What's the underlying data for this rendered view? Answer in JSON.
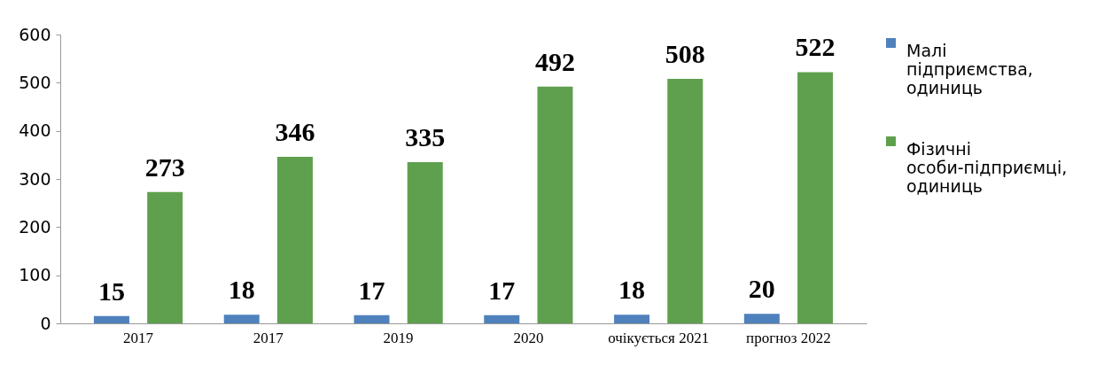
{
  "chart_data": {
    "type": "bar",
    "categories": [
      "2017",
      "2017",
      "2019",
      "2020",
      "очікується 2021",
      "прогноз 2022"
    ],
    "series": [
      {
        "name": "Малі підприємства, одиниць",
        "color": "#4f81bd",
        "values": [
          15,
          18,
          17,
          17,
          18,
          20
        ]
      },
      {
        "name": "Фізичні особи-підприємці, одиниць",
        "color": "#5fa04e",
        "values": [
          273,
          346,
          335,
          492,
          508,
          522
        ]
      }
    ],
    "ylim": [
      0,
      600
    ],
    "yticks": [
      0,
      100,
      200,
      300,
      400,
      500,
      600
    ],
    "grid": false,
    "legend": "right",
    "data_labels": true
  }
}
